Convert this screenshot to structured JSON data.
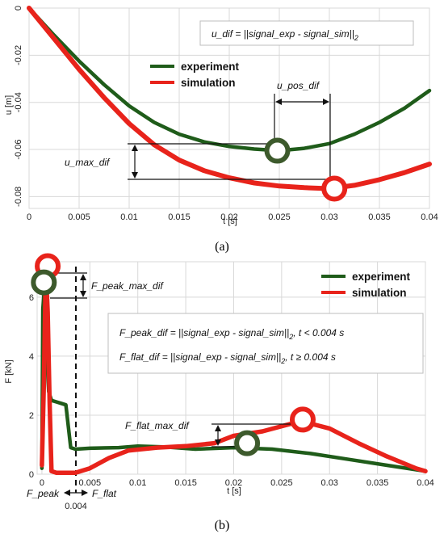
{
  "chart_data": [
    {
      "type": "line",
      "panel": "a",
      "caption": "(a)",
      "xlabel": "t [s]",
      "ylabel": "u [m]",
      "xlim": [
        0,
        0.04
      ],
      "ylim": [
        -0.085,
        0.0
      ],
      "xticks": [
        0,
        0.005,
        0.01,
        0.015,
        0.02,
        0.025,
        0.03,
        0.035,
        0.04
      ],
      "xtick_labels": [
        "0",
        "0.005",
        "0.01",
        "0.015",
        "0.02",
        "0.025",
        "0.03",
        "0.035",
        "0.04"
      ],
      "yticks": [
        0,
        -0.02,
        -0.04,
        -0.06,
        -0.08
      ],
      "ytick_labels": [
        "0",
        "-0.02",
        "-0.04",
        "-0.06",
        "-0.08"
      ],
      "grid": true,
      "legend_placement": "top-center",
      "series": [
        {
          "name": "experiment",
          "color": "#1f5c1a",
          "x": [
            0,
            0.0025,
            0.005,
            0.0075,
            0.01,
            0.0125,
            0.015,
            0.0175,
            0.02,
            0.0225,
            0.025,
            0.0275,
            0.03,
            0.0325,
            0.035,
            0.0375,
            0.04
          ],
          "y": [
            0,
            -0.0115,
            -0.0225,
            -0.0325,
            -0.0415,
            -0.0485,
            -0.0535,
            -0.0568,
            -0.0587,
            -0.0598,
            -0.0605,
            -0.0595,
            -0.0575,
            -0.0535,
            -0.0485,
            -0.0425,
            -0.035
          ]
        },
        {
          "name": "simulation",
          "color": "#e8231b",
          "x": [
            0,
            0.0025,
            0.005,
            0.0075,
            0.01,
            0.0125,
            0.015,
            0.0175,
            0.02,
            0.0225,
            0.025,
            0.0275,
            0.03,
            0.0325,
            0.035,
            0.0375,
            0.04
          ],
          "y": [
            0,
            -0.013,
            -0.026,
            -0.038,
            -0.049,
            -0.058,
            -0.0645,
            -0.069,
            -0.072,
            -0.0742,
            -0.0755,
            -0.0762,
            -0.0766,
            -0.0752,
            -0.0728,
            -0.0698,
            -0.0662
          ]
        }
      ],
      "markers": [
        {
          "name": "experiment-min-marker",
          "x": 0.0248,
          "y": -0.0605,
          "color": "#3d5a2c"
        },
        {
          "name": "simulation-min-marker",
          "x": 0.0305,
          "y": -0.0766,
          "color": "#e8231b"
        }
      ],
      "annotations": {
        "formula": "u_dif = ||signal_exp - signal_sim||",
        "formula_subscript": "2",
        "u_max_dif": "u_max_dif",
        "u_pos_dif": "u_pos_dif"
      }
    },
    {
      "type": "line",
      "panel": "b",
      "caption": "(b)",
      "xlabel": "t [s]",
      "ylabel": "F [kN]",
      "xlim": [
        -0.0005,
        0.04
      ],
      "ylim": [
        0,
        7.2
      ],
      "xticks": [
        0,
        0.005,
        0.01,
        0.015,
        0.02,
        0.025,
        0.03,
        0.035,
        0.04
      ],
      "xtick_labels": [
        "0",
        "0.005",
        "0.01",
        "0.015",
        "0.02",
        "0.025",
        "0.03",
        "0.035",
        "0.04"
      ],
      "yticks": [
        0,
        2,
        4,
        6
      ],
      "ytick_labels": [
        "0",
        "2",
        "4",
        "6"
      ],
      "grid": true,
      "legend_placement": "top-right",
      "series": [
        {
          "name": "experiment",
          "color": "#1f5c1a",
          "x": [
            0,
            0.0001,
            0.0003,
            0.0005,
            0.0007,
            0.001,
            0.0015,
            0.002,
            0.0025,
            0.003,
            0.0035,
            0.005,
            0.008,
            0.01,
            0.013,
            0.016,
            0.02,
            0.024,
            0.028,
            0.032,
            0.036,
            0.04
          ],
          "y": [
            0.2,
            5.6,
            6.5,
            4.2,
            2.8,
            2.5,
            2.45,
            2.4,
            2.35,
            0.9,
            0.85,
            0.88,
            0.9,
            0.95,
            0.92,
            0.85,
            0.9,
            0.85,
            0.7,
            0.5,
            0.3,
            0.1
          ]
        },
        {
          "name": "simulation",
          "color": "#e8231b",
          "x": [
            0,
            0.0002,
            0.0004,
            0.0006,
            0.0008,
            0.001,
            0.0015,
            0.002,
            0.0035,
            0.005,
            0.007,
            0.009,
            0.012,
            0.015,
            0.018,
            0.02,
            0.023,
            0.027,
            0.03,
            0.033,
            0.036,
            0.039,
            0.04
          ],
          "y": [
            0.3,
            3.0,
            7.0,
            5.5,
            2.5,
            0.1,
            0.05,
            0.05,
            0.05,
            0.2,
            0.55,
            0.8,
            0.9,
            0.95,
            1.05,
            1.3,
            1.45,
            1.8,
            1.55,
            1.05,
            0.6,
            0.2,
            0.1
          ]
        }
      ],
      "markers": [
        {
          "name": "simulation-peak-marker",
          "x": 0.0006,
          "y": 7.05,
          "color": "#e8231b"
        },
        {
          "name": "experiment-peak-marker",
          "x": 0.0002,
          "y": 6.5,
          "color": "#3d5a2c"
        },
        {
          "name": "experiment-flat-marker",
          "x": 0.0214,
          "y": 1.05,
          "color": "#3d5a2c"
        },
        {
          "name": "simulation-flat-marker",
          "x": 0.0272,
          "y": 1.85,
          "color": "#e8231b"
        }
      ],
      "annotations": {
        "formula_peak": "F_peak_dif = ||signal_exp - signal_sim||",
        "formula_peak_subscript": "2",
        "formula_peak_condition": ", t < 0.004 s",
        "formula_flat": "F_flat_dif = ||signal_exp - signal_sim||",
        "formula_flat_subscript": "2",
        "formula_flat_condition": ", t ≥ 0.004 s",
        "F_peak_max_dif": "F_peak_max_dif",
        "F_flat_max_dif": "F_flat_max_dif",
        "F_peak": "F_peak",
        "F_flat": "F_flat",
        "split_value": "0.004"
      }
    }
  ]
}
